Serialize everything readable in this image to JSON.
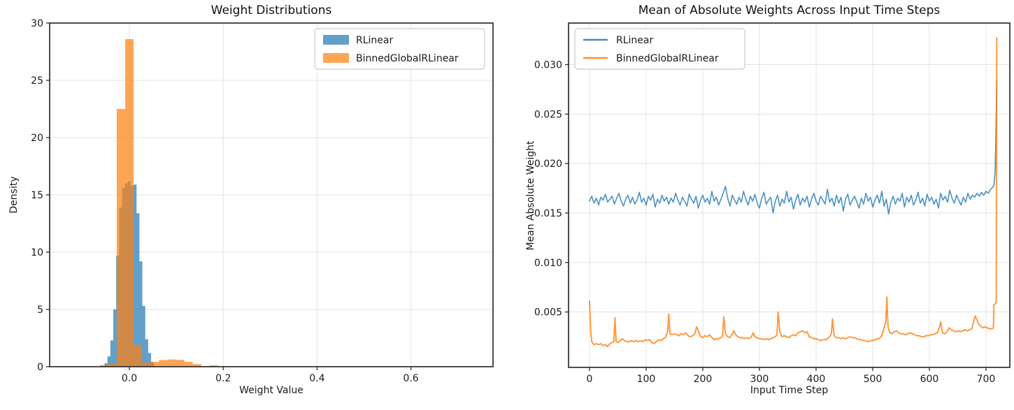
{
  "figure": {
    "background": "#ffffff",
    "grid_color": "#e3e3e3",
    "spine_color": "#2e2e2e",
    "text_color": "#1a1a1a"
  },
  "chart_data": [
    {
      "id": "weight-distributions",
      "type": "bar",
      "title": "Weight Distributions",
      "xlabel": "Weight Value",
      "ylabel": "Density",
      "xlim": [
        -0.17,
        0.775
      ],
      "ylim": [
        0,
        30
      ],
      "xticks": [
        0.0,
        0.2,
        0.4,
        0.6
      ],
      "xtick_labels": [
        "0.0",
        "0.2",
        "0.4",
        "0.6"
      ],
      "yticks": [
        0,
        5,
        10,
        15,
        20,
        25,
        30
      ],
      "ytick_labels": [
        "0",
        "5",
        "10",
        "15",
        "20",
        "25",
        "30"
      ],
      "grid": true,
      "legend": {
        "position": "upper-right",
        "style": "patch",
        "entries": [
          {
            "label": "RLinear",
            "color": "#1f77b4"
          },
          {
            "label": "BinnedGlobalRLinear",
            "color": "#ff7f0e"
          }
        ]
      },
      "series": [
        {
          "name": "RLinear",
          "color": "#1f77b4",
          "opacity": 0.7,
          "bin_start": -0.053,
          "bin_width": 0.0062,
          "heights": [
            0.3,
            0.9,
            2.3,
            5.0,
            9.7,
            13.9,
            15.6,
            16.0,
            16.2,
            15.8,
            15.9,
            13.4,
            9.2,
            5.3,
            2.4,
            1.2,
            0.4
          ]
        },
        {
          "name": "BinnedGlobalRLinear",
          "color": "#ff7f0e",
          "opacity": 0.7,
          "bin_start": -0.063,
          "bin_width": 0.018,
          "heights": [
            0.15,
            0.25,
            22.5,
            28.6,
            1.9,
            0.35,
            0.42,
            0.58,
            0.63,
            0.6,
            0.42,
            0.22,
            0.06,
            0.12,
            0.02
          ]
        }
      ]
    },
    {
      "id": "mean-abs-weights",
      "type": "line",
      "title": "Mean of Absolute Weights Across Input Time Steps",
      "xlabel": "Input Time Step",
      "ylabel": "Mean Absolute Weight",
      "xlim": [
        -37,
        742
      ],
      "ylim": [
        -0.0006,
        0.0342
      ],
      "xticks": [
        0,
        100,
        200,
        300,
        400,
        500,
        600,
        700
      ],
      "xtick_labels": [
        "0",
        "100",
        "200",
        "300",
        "400",
        "500",
        "600",
        "700"
      ],
      "yticks": [
        0.005,
        0.01,
        0.015,
        0.02,
        0.025,
        0.03
      ],
      "ytick_labels": [
        "0.005",
        "0.010",
        "0.015",
        "0.020",
        "0.025",
        "0.030"
      ],
      "grid": true,
      "y_scale": 0.0001,
      "legend": {
        "position": "upper-left",
        "style": "line",
        "entries": [
          {
            "label": "RLinear",
            "color": "#1f77b4"
          },
          {
            "label": "BinnedGlobalRLinear",
            "color": "#ff7f0e"
          }
        ]
      },
      "series": [
        {
          "name": "RLinear",
          "color": "#1f77b4",
          "opacity": 0.8,
          "line_width": 1.6,
          "x_start": 0,
          "x_step": 4,
          "y": [
            162,
            167,
            160,
            165,
            158,
            166,
            163,
            169,
            161,
            164,
            167,
            159,
            165,
            170,
            162,
            157,
            164,
            168,
            160,
            166,
            159,
            163,
            171,
            161,
            165,
            158,
            167,
            163,
            169,
            156,
            164,
            160,
            168,
            162,
            166,
            159,
            165,
            161,
            170,
            163,
            158,
            166,
            162,
            157,
            169,
            164,
            160,
            167,
            155,
            163,
            168,
            161,
            165,
            159,
            172,
            162,
            166,
            158,
            164,
            170,
            177,
            165,
            157,
            168,
            163,
            159,
            166,
            161,
            172,
            164,
            158,
            167,
            162,
            169,
            160,
            155,
            165,
            171,
            159,
            163,
            166,
            150,
            162,
            168,
            157,
            164,
            160,
            172,
            161,
            166,
            154,
            163,
            169,
            158,
            165,
            161,
            167,
            156,
            164,
            170,
            162,
            158,
            167,
            163,
            159,
            174,
            161,
            165,
            157,
            168,
            160,
            166,
            152,
            164,
            169,
            158,
            163,
            167,
            161,
            155,
            165,
            159,
            170,
            162,
            166,
            156,
            163,
            168,
            160,
            172,
            157,
            164,
            149,
            161,
            167,
            159,
            165,
            162,
            170,
            156,
            166,
            161,
            168,
            158,
            163,
            171,
            160,
            165,
            157,
            169,
            162,
            166,
            159,
            164,
            155,
            170,
            163,
            167,
            161,
            173,
            165,
            160,
            168,
            163,
            158,
            166,
            161,
            170,
            164,
            168,
            166,
            170,
            167,
            171,
            168,
            172,
            170,
            174,
            176
          ],
          "tail": [
            [
              714,
              178
            ],
            [
              716,
              192
            ],
            [
              717,
              215
            ],
            [
              718,
              250
            ],
            [
              719,
              284
            ]
          ]
        },
        {
          "name": "BinnedGlobalRLinear",
          "color": "#ff7f0e",
          "opacity": 0.8,
          "line_width": 2.0,
          "points": [
            [
              0,
              61
            ],
            [
              1,
              48
            ],
            [
              2,
              32
            ],
            [
              4,
              20
            ],
            [
              8,
              17
            ],
            [
              12,
              18
            ],
            [
              16,
              17
            ],
            [
              20,
              18
            ],
            [
              24,
              16
            ],
            [
              28,
              17
            ],
            [
              32,
              15
            ],
            [
              36,
              18
            ],
            [
              40,
              19
            ],
            [
              43,
              20
            ],
            [
              45,
              44
            ],
            [
              47,
              20
            ],
            [
              50,
              19
            ],
            [
              54,
              21
            ],
            [
              58,
              23
            ],
            [
              62,
              21
            ],
            [
              66,
              20
            ],
            [
              70,
              20
            ],
            [
              74,
              21
            ],
            [
              78,
              20
            ],
            [
              82,
              21
            ],
            [
              86,
              20
            ],
            [
              90,
              21
            ],
            [
              94,
              20
            ],
            [
              98,
              22
            ],
            [
              102,
              21
            ],
            [
              106,
              22
            ],
            [
              110,
              19
            ],
            [
              114,
              18
            ],
            [
              118,
              20
            ],
            [
              122,
              22
            ],
            [
              126,
              21
            ],
            [
              130,
              23
            ],
            [
              134,
              24
            ],
            [
              138,
              30
            ],
            [
              140,
              48
            ],
            [
              142,
              28
            ],
            [
              146,
              27
            ],
            [
              150,
              28
            ],
            [
              154,
              27
            ],
            [
              158,
              26
            ],
            [
              162,
              28
            ],
            [
              166,
              27
            ],
            [
              170,
              29
            ],
            [
              174,
              26
            ],
            [
              178,
              25
            ],
            [
              182,
              26
            ],
            [
              186,
              28
            ],
            [
              189,
              35
            ],
            [
              192,
              31
            ],
            [
              196,
              25
            ],
            [
              200,
              24
            ],
            [
              204,
              26
            ],
            [
              208,
              25
            ],
            [
              212,
              27
            ],
            [
              216,
              24
            ],
            [
              220,
              22
            ],
            [
              224,
              23
            ],
            [
              228,
              23
            ],
            [
              232,
              24
            ],
            [
              235,
              26
            ],
            [
              237,
              45
            ],
            [
              240,
              28
            ],
            [
              244,
              25
            ],
            [
              248,
              24
            ],
            [
              252,
              28
            ],
            [
              255,
              31
            ],
            [
              258,
              27
            ],
            [
              262,
              25
            ],
            [
              266,
              24
            ],
            [
              270,
              24
            ],
            [
              274,
              23
            ],
            [
              278,
              24
            ],
            [
              282,
              23
            ],
            [
              286,
              25
            ],
            [
              289,
              29
            ],
            [
              292,
              25
            ],
            [
              296,
              24
            ],
            [
              300,
              23
            ],
            [
              304,
              23
            ],
            [
              308,
              22
            ],
            [
              312,
              23
            ],
            [
              316,
              22
            ],
            [
              320,
              23
            ],
            [
              324,
              24
            ],
            [
              328,
              25
            ],
            [
              331,
              27
            ],
            [
              333,
              50
            ],
            [
              336,
              30
            ],
            [
              340,
              25
            ],
            [
              344,
              26
            ],
            [
              348,
              25
            ],
            [
              352,
              24
            ],
            [
              356,
              26
            ],
            [
              360,
              27
            ],
            [
              364,
              26
            ],
            [
              368,
              29
            ],
            [
              372,
              30
            ],
            [
              376,
              31
            ],
            [
              380,
              29
            ],
            [
              384,
              30
            ],
            [
              388,
              25
            ],
            [
              392,
              24
            ],
            [
              396,
              23
            ],
            [
              400,
              23
            ],
            [
              404,
              22
            ],
            [
              408,
              21
            ],
            [
              412,
              22
            ],
            [
              416,
              22
            ],
            [
              420,
              23
            ],
            [
              424,
              25
            ],
            [
              427,
              28
            ],
            [
              429,
              43
            ],
            [
              432,
              26
            ],
            [
              436,
              24
            ],
            [
              440,
              24
            ],
            [
              444,
              23
            ],
            [
              448,
              24
            ],
            [
              452,
              23
            ],
            [
              456,
              24
            ],
            [
              460,
              25
            ],
            [
              464,
              24
            ],
            [
              468,
              24
            ],
            [
              472,
              23
            ],
            [
              476,
              22
            ],
            [
              480,
              22
            ],
            [
              484,
              21
            ],
            [
              488,
              21
            ],
            [
              492,
              20
            ],
            [
              496,
              21
            ],
            [
              500,
              21
            ],
            [
              504,
              22
            ],
            [
              508,
              23
            ],
            [
              512,
              23
            ],
            [
              516,
              26
            ],
            [
              520,
              34
            ],
            [
              523,
              40
            ],
            [
              525,
              65
            ],
            [
              527,
              35
            ],
            [
              530,
              29
            ],
            [
              534,
              28
            ],
            [
              538,
              30
            ],
            [
              542,
              31
            ],
            [
              546,
              29
            ],
            [
              550,
              28
            ],
            [
              554,
              28
            ],
            [
              558,
              27
            ],
            [
              562,
              28
            ],
            [
              566,
              29
            ],
            [
              570,
              28
            ],
            [
              574,
              27
            ],
            [
              578,
              26
            ],
            [
              582,
              26
            ],
            [
              586,
              25
            ],
            [
              590,
              25
            ],
            [
              594,
              26
            ],
            [
              598,
              26
            ],
            [
              602,
              27
            ],
            [
              606,
              27
            ],
            [
              610,
              28
            ],
            [
              614,
              29
            ],
            [
              617,
              33
            ],
            [
              620,
              40
            ],
            [
              623,
              29
            ],
            [
              627,
              28
            ],
            [
              631,
              30
            ],
            [
              635,
              34
            ],
            [
              639,
              32
            ],
            [
              643,
              31
            ],
            [
              647,
              30
            ],
            [
              651,
              31
            ],
            [
              655,
              30
            ],
            [
              659,
              31
            ],
            [
              663,
              32
            ],
            [
              667,
              31
            ],
            [
              671,
              32
            ],
            [
              675,
              33
            ],
            [
              678,
              40
            ],
            [
              681,
              46
            ],
            [
              684,
              42
            ],
            [
              687,
              38
            ],
            [
              690,
              36
            ],
            [
              694,
              34
            ],
            [
              698,
              35
            ],
            [
              702,
              34
            ],
            [
              706,
              33
            ],
            [
              710,
              33
            ],
            [
              713,
              34
            ],
            [
              714,
              57
            ],
            [
              716,
              58
            ],
            [
              718,
              60
            ],
            [
              719,
              327
            ]
          ]
        }
      ]
    }
  ]
}
